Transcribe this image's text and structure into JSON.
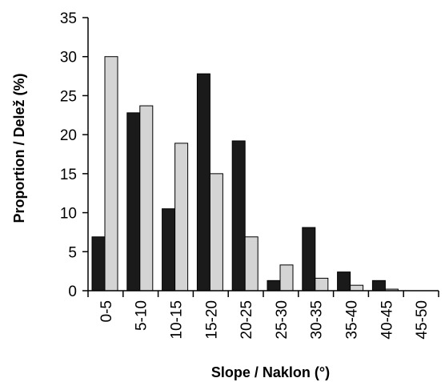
{
  "chart_data": {
    "type": "bar",
    "categories": [
      "0-5",
      "5-10",
      "10-15",
      "15-20",
      "20-25",
      "25-30",
      "30-35",
      "35-40",
      "40-45",
      "45-50"
    ],
    "series": [
      {
        "values": [
          6.9,
          22.8,
          10.5,
          27.8,
          19.2,
          1.3,
          8.1,
          2.4,
          1.3,
          0.0
        ],
        "color": "#1a1a1a"
      },
      {
        "values": [
          30.0,
          23.7,
          18.9,
          15.0,
          6.9,
          3.3,
          1.6,
          0.7,
          0.2,
          0.0
        ],
        "color": "#d4d4d4"
      }
    ],
    "title": "",
    "xlabel": "Slope / Naklon (°)",
    "ylabel": "Proportion / Delež (%)",
    "ylim": [
      0,
      35
    ],
    "yticks": [
      0,
      5,
      10,
      15,
      20,
      25,
      30,
      35
    ],
    "grid": false,
    "legend": "none"
  }
}
